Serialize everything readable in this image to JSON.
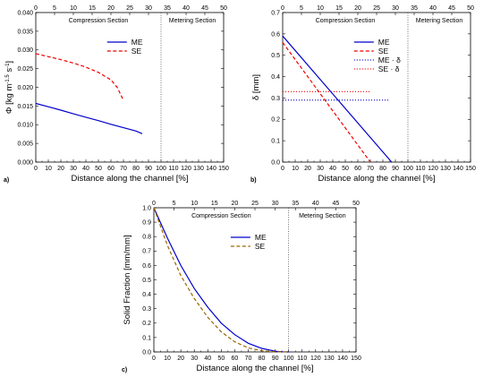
{
  "chart_data": [
    {
      "panel": "a)",
      "type": "line",
      "xlabel": "Distance along the channel [%]",
      "ylabel_parts": [
        "Φ [kg m",
        "-1.5",
        " s",
        "-1",
        "]"
      ],
      "xlim": [
        0,
        150
      ],
      "ylim": [
        0,
        0.04
      ],
      "xticks": [
        0,
        10,
        20,
        30,
        40,
        50,
        60,
        70,
        80,
        90,
        100,
        110,
        120,
        130,
        140,
        150
      ],
      "yticks": [
        "0.000",
        "0.005",
        "0.010",
        "0.015",
        "0.020",
        "0.025",
        "0.030",
        "0.035",
        "0.040"
      ],
      "top_ticks": [
        0,
        5,
        10,
        15,
        20,
        25,
        30,
        35,
        40,
        45,
        50
      ],
      "section_labels": [
        "Compression Section",
        "Metering Section"
      ],
      "section_boundary_x": 100,
      "series": [
        {
          "name": "ME",
          "color": "#0000cc",
          "dash": "solid",
          "x": [
            0,
            10,
            20,
            30,
            40,
            50,
            60,
            70,
            80,
            85
          ],
          "y": [
            0.0157,
            0.0148,
            0.0139,
            0.0129,
            0.012,
            0.0111,
            0.0101,
            0.0092,
            0.0083,
            0.0076
          ]
        },
        {
          "name": "SE",
          "color": "#ee0000",
          "dash": "dashed",
          "x": [
            0,
            10,
            20,
            30,
            40,
            50,
            60,
            65,
            70
          ],
          "y": [
            0.029,
            0.0282,
            0.0274,
            0.0265,
            0.0254,
            0.024,
            0.022,
            0.02,
            0.0165
          ]
        }
      ],
      "legend": "upper-center"
    },
    {
      "panel": "b)",
      "type": "line",
      "xlabel": "Distance along the channel [%]",
      "ylabel": "δ [mm]",
      "xlim": [
        0,
        150
      ],
      "ylim": [
        0,
        0.7
      ],
      "xticks": [
        0,
        10,
        20,
        30,
        40,
        50,
        60,
        70,
        80,
        90,
        100,
        110,
        120,
        130,
        140,
        150
      ],
      "yticks": [
        "0.0",
        "0.1",
        "0.2",
        "0.3",
        "0.4",
        "0.5",
        "0.6",
        "0.7"
      ],
      "top_ticks": [
        0,
        5,
        10,
        15,
        20,
        25,
        30,
        35,
        40,
        45,
        50
      ],
      "section_labels": [
        "Compression Section",
        "Metering Section"
      ],
      "section_boundary_x": 100,
      "series": [
        {
          "name": "ME",
          "color": "#0000cc",
          "dash": "solid",
          "x": [
            0,
            87
          ],
          "y": [
            0.59,
            0.0
          ]
        },
        {
          "name": "SE",
          "color": "#ee0000",
          "dash": "dashed",
          "x": [
            0,
            70
          ],
          "y": [
            0.56,
            0.0
          ]
        },
        {
          "name": "ME · δ",
          "color": "#0000cc",
          "dash": "dotted",
          "x": [
            0,
            85
          ],
          "y": [
            0.29,
            0.29
          ]
        },
        {
          "name": "SE · δ",
          "color": "#ee0000",
          "dash": "dotted",
          "x": [
            0,
            70
          ],
          "y": [
            0.33,
            0.33
          ]
        }
      ],
      "legend": "upper-center"
    },
    {
      "panel": "c)",
      "type": "line",
      "xlabel": "Distance along the channel [%]",
      "ylabel": "Solid Fraction [mm/mm]",
      "xlim": [
        0,
        150
      ],
      "ylim": [
        0,
        1.0
      ],
      "xticks": [
        0,
        10,
        20,
        30,
        40,
        50,
        60,
        70,
        80,
        90,
        100,
        110,
        120,
        130,
        140,
        150
      ],
      "yticks": [
        "0.0",
        "0.1",
        "0.2",
        "0.3",
        "0.4",
        "0.5",
        "0.6",
        "0.7",
        "0.8",
        "0.9",
        "1.0"
      ],
      "top_ticks": [
        0,
        5,
        10,
        15,
        20,
        25,
        30,
        35,
        40,
        45,
        50
      ],
      "section_labels": [
        "Compression Section",
        "Metering Section"
      ],
      "section_boundary_x": 100,
      "series": [
        {
          "name": "ME",
          "color": "#0000cc",
          "dash": "solid",
          "x": [
            0,
            10,
            20,
            30,
            40,
            50,
            60,
            70,
            80,
            90,
            95,
            100
          ],
          "y": [
            1.0,
            0.79,
            0.6,
            0.44,
            0.31,
            0.2,
            0.12,
            0.06,
            0.025,
            0.005,
            0.001,
            0.0
          ]
        },
        {
          "name": "SE",
          "color": "#996600",
          "dash": "dashed",
          "x": [
            0,
            10,
            20,
            30,
            40,
            50,
            60,
            70,
            80,
            90,
            100
          ],
          "y": [
            1.0,
            0.74,
            0.53,
            0.37,
            0.24,
            0.14,
            0.07,
            0.028,
            0.008,
            0.001,
            0.0
          ]
        }
      ],
      "legend": "upper-center"
    }
  ]
}
